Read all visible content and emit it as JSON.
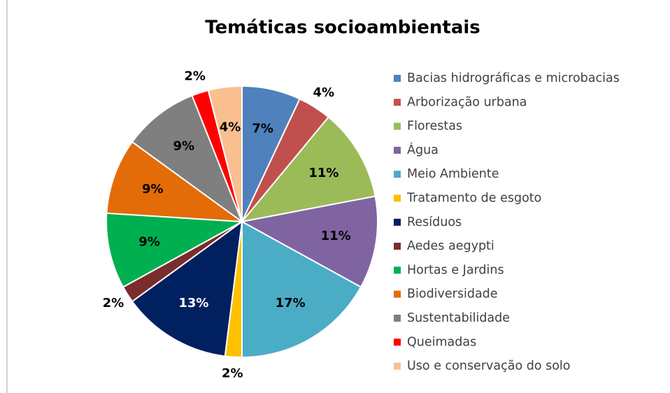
{
  "chart_data": {
    "type": "pie",
    "title": "Temáticas socioambientais",
    "categories": [
      "Bacias hidrográficas e microbacias",
      "Arborização urbana",
      "Florestas",
      "Água",
      "Meio Ambiente",
      "Tratamento de esgoto",
      "Resíduos",
      "Aedes aegypti",
      "Hortas e Jardins",
      "Biodiversidade",
      "Sustentabilidade",
      "Queimadas",
      "Uso e conservação do solo"
    ],
    "values": [
      7,
      4,
      11,
      11,
      17,
      2,
      13,
      2,
      9,
      9,
      9,
      2,
      4
    ],
    "value_labels": [
      "7%",
      "4%",
      "11%",
      "11%",
      "17%",
      "2%",
      "13%",
      "2%",
      "9%",
      "9%",
      "9%",
      "2%",
      "4%"
    ],
    "colors": [
      "#4f81bd",
      "#c0504d",
      "#9bbb59",
      "#8064a2",
      "#4bacc6",
      "#ffc000",
      "#002060",
      "#7b2c2c",
      "#00b050",
      "#e36c09",
      "#7f7f7f",
      "#ff0000",
      "#fabf8f"
    ],
    "legend": "right"
  }
}
